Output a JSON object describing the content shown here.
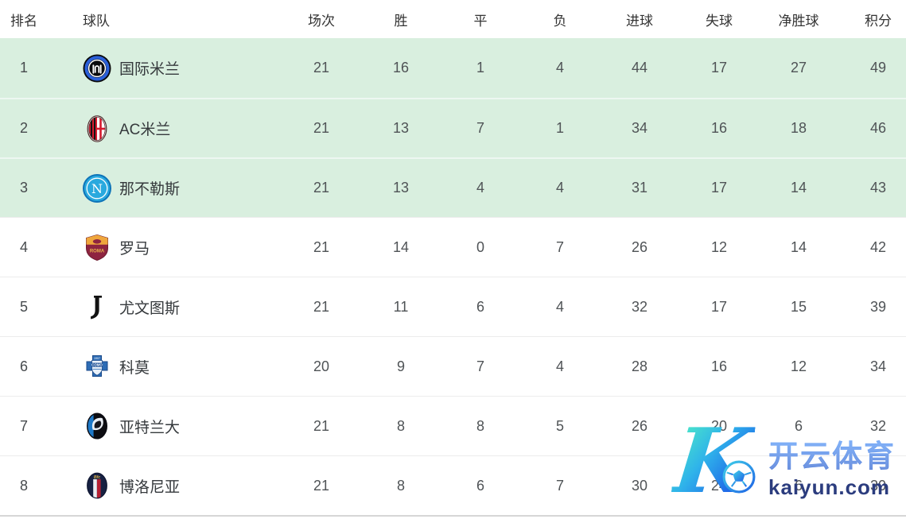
{
  "header": {
    "columns": [
      {
        "key": "rank",
        "label": "排名"
      },
      {
        "key": "team",
        "label": "球队"
      },
      {
        "key": "played",
        "label": "场次"
      },
      {
        "key": "win",
        "label": "胜"
      },
      {
        "key": "draw",
        "label": "平"
      },
      {
        "key": "loss",
        "label": "负"
      },
      {
        "key": "goals_for",
        "label": "进球"
      },
      {
        "key": "goals_against",
        "label": "失球"
      },
      {
        "key": "goal_diff",
        "label": "净胜球"
      },
      {
        "key": "points",
        "label": "积分"
      }
    ]
  },
  "rows": [
    {
      "rank": "1",
      "team": "国际米兰",
      "logo": "inter-milan-logo",
      "played": "21",
      "win": "16",
      "draw": "1",
      "loss": "4",
      "goals_for": "44",
      "goals_against": "17",
      "goal_diff": "27",
      "points": "49",
      "highlighted": true
    },
    {
      "rank": "2",
      "team": "AC米兰",
      "logo": "ac-milan-logo",
      "played": "21",
      "win": "13",
      "draw": "7",
      "loss": "1",
      "goals_for": "34",
      "goals_against": "16",
      "goal_diff": "18",
      "points": "46",
      "highlighted": true
    },
    {
      "rank": "3",
      "team": "那不勒斯",
      "logo": "napoli-logo",
      "played": "21",
      "win": "13",
      "draw": "4",
      "loss": "4",
      "goals_for": "31",
      "goals_against": "17",
      "goal_diff": "14",
      "points": "43",
      "highlighted": true
    },
    {
      "rank": "4",
      "team": "罗马",
      "logo": "roma-logo",
      "played": "21",
      "win": "14",
      "draw": "0",
      "loss": "7",
      "goals_for": "26",
      "goals_against": "12",
      "goal_diff": "14",
      "points": "42",
      "highlighted": false
    },
    {
      "rank": "5",
      "team": "尤文图斯",
      "logo": "juventus-logo",
      "played": "21",
      "win": "11",
      "draw": "6",
      "loss": "4",
      "goals_for": "32",
      "goals_against": "17",
      "goal_diff": "15",
      "points": "39",
      "highlighted": false
    },
    {
      "rank": "6",
      "team": "科莫",
      "logo": "como-logo",
      "played": "20",
      "win": "9",
      "draw": "7",
      "loss": "4",
      "goals_for": "28",
      "goals_against": "16",
      "goal_diff": "12",
      "points": "34",
      "highlighted": false
    },
    {
      "rank": "7",
      "team": "亚特兰大",
      "logo": "atalanta-logo",
      "played": "21",
      "win": "8",
      "draw": "8",
      "loss": "5",
      "goals_for": "26",
      "goals_against": "20",
      "goal_diff": "6",
      "points": "32",
      "highlighted": false
    },
    {
      "rank": "8",
      "team": "博洛尼亚",
      "logo": "bologna-logo",
      "played": "21",
      "win": "8",
      "draw": "6",
      "loss": "7",
      "goals_for": "30",
      "goals_against": "24",
      "goal_diff": "6",
      "points": "30",
      "highlighted": false
    }
  ],
  "watermark": {
    "logo_letter": "K",
    "brand": "开云体育",
    "domain": "kaiyun.com"
  },
  "colors": {
    "highlight_row_bg": "#d9efdf",
    "highlight_separator": "#edf7f1",
    "row_separator": "#ececec",
    "header_text": "#333333",
    "cell_text": "#4f5356",
    "watermark_blue": "#2a6ae0",
    "watermark_navy": "#2b3c7e",
    "watermark_teal": "#45e2c7"
  }
}
